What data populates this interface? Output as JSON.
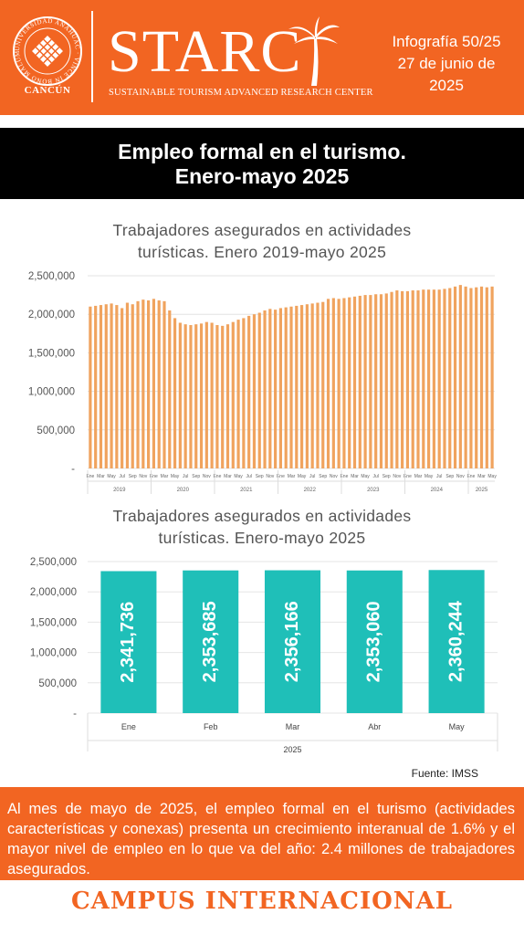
{
  "header": {
    "logo_ring_text": "UNIVERSIDAD ANÁHUAC · VINCE IN BONO MALUM",
    "logo_caption": "CANCÚN",
    "org_name": "STARC",
    "org_subtitle": "SUSTAINABLE TOURISM ADVANCED RESEARCH CENTER",
    "info_number": "Infografía 50/25",
    "info_date_1": "27 de junio de",
    "info_date_2": "2025"
  },
  "banner": {
    "line1": "Empleo formal en el turismo.",
    "line2": "Enero-mayo 2025"
  },
  "colors": {
    "brand_orange": "#f26522",
    "bar_orange": "#f0a35e",
    "bar_teal": "#1fbfb8",
    "black": "#000000"
  },
  "chart_data": [
    {
      "type": "bar",
      "title_line1": "Trabajadores asegurados en actividades",
      "title_line2": "turísticas. Enero 2019-mayo 2025",
      "ylim": [
        0,
        2500000
      ],
      "y_ticks": [
        "-",
        "500,000",
        "1,000,000",
        "1,500,000",
        "2,000,000",
        "2,500,000"
      ],
      "month_labels": [
        "Ene",
        "Mar",
        "May",
        "Jul",
        "Sep",
        "Nov"
      ],
      "years": [
        "2019",
        "2020",
        "2021",
        "2022",
        "2023",
        "2024",
        "2025"
      ],
      "values": [
        2100000,
        2110000,
        2120000,
        2130000,
        2140000,
        2120000,
        2080000,
        2150000,
        2130000,
        2170000,
        2190000,
        2180000,
        2200000,
        2180000,
        2170000,
        2050000,
        1950000,
        1890000,
        1870000,
        1860000,
        1870000,
        1880000,
        1900000,
        1890000,
        1860000,
        1850000,
        1870000,
        1900000,
        1930000,
        1950000,
        1980000,
        2000000,
        2020000,
        2050000,
        2070000,
        2060000,
        2080000,
        2090000,
        2100000,
        2110000,
        2120000,
        2130000,
        2140000,
        2150000,
        2160000,
        2200000,
        2210000,
        2200000,
        2210000,
        2220000,
        2230000,
        2240000,
        2250000,
        2250000,
        2260000,
        2260000,
        2270000,
        2290000,
        2310000,
        2300000,
        2300000,
        2310000,
        2310000,
        2320000,
        2320000,
        2320000,
        2320000,
        2330000,
        2340000,
        2360000,
        2380000,
        2360000,
        2340000,
        2350000,
        2360000,
        2350000,
        2360000
      ]
    },
    {
      "type": "bar",
      "title_line1": "Trabajadores asegurados en actividades",
      "title_line2": "turísticas. Enero-mayo 2025",
      "categories": [
        "Ene",
        "Feb",
        "Mar",
        "Abr",
        "May"
      ],
      "values": [
        2341736,
        2353685,
        2356166,
        2353060,
        2360244
      ],
      "data_labels": [
        "2,341,736",
        "2,353,685",
        "2,356,166",
        "2,353,060",
        "2,360,244"
      ],
      "year_label": "2025",
      "ylim": [
        0,
        2500000
      ],
      "y_ticks": [
        "-",
        "500,000",
        "1,000,000",
        "1,500,000",
        "2,000,000",
        "2,500,000"
      ]
    }
  ],
  "source": "Fuente: IMSS",
  "note": "Al mes de mayo de 2025, el empleo formal en el turismo (actividades características y conexas) presenta un crecimiento interanual de 1.6% y el mayor nivel de empleo en lo que va del año: 2.4 millones de trabajadores asegurados.",
  "footer": "CAMPUS INTERNACIONAL"
}
